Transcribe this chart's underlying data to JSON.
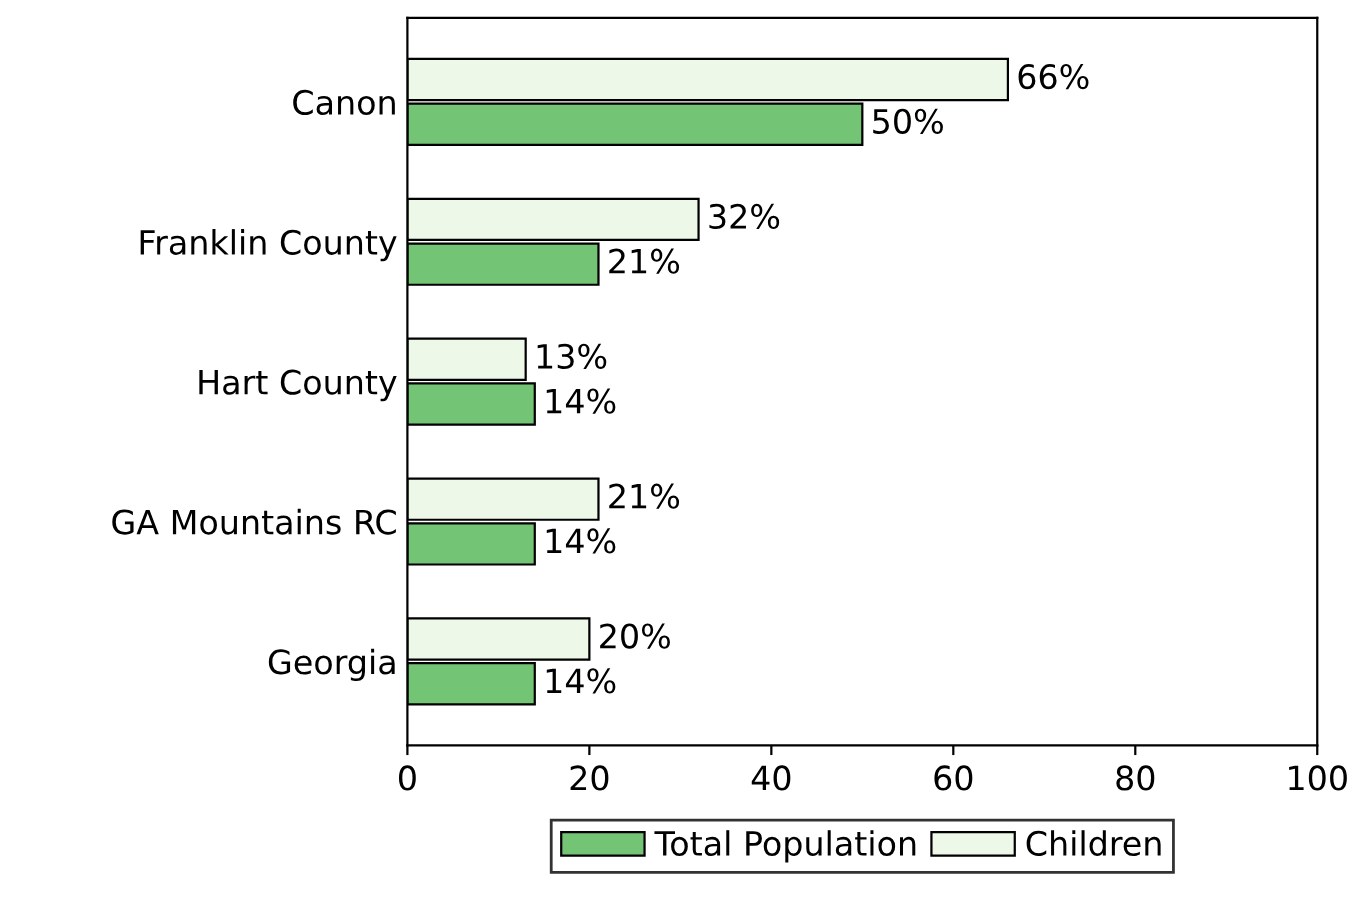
{
  "chart_data": {
    "type": "bar",
    "orientation": "horizontal",
    "categories": [
      "Canon",
      "Franklin County",
      "Hart County",
      "GA Mountains RC",
      "Georgia"
    ],
    "series": [
      {
        "name": "Total Population",
        "color": "#74c476",
        "values": [
          50,
          21,
          14,
          14,
          14
        ],
        "value_labels": [
          "50%",
          "21%",
          "14%",
          "14%",
          "14%"
        ]
      },
      {
        "name": "Children",
        "color": "#edf8e9",
        "values": [
          66,
          32,
          13,
          21,
          20
        ],
        "value_labels": [
          "66%",
          "32%",
          "13%",
          "21%",
          "20%"
        ]
      }
    ],
    "xlim": [
      0,
      100
    ],
    "xticks": [
      0,
      20,
      40,
      60,
      80,
      100
    ],
    "grid": false,
    "legend": "bottom"
  }
}
